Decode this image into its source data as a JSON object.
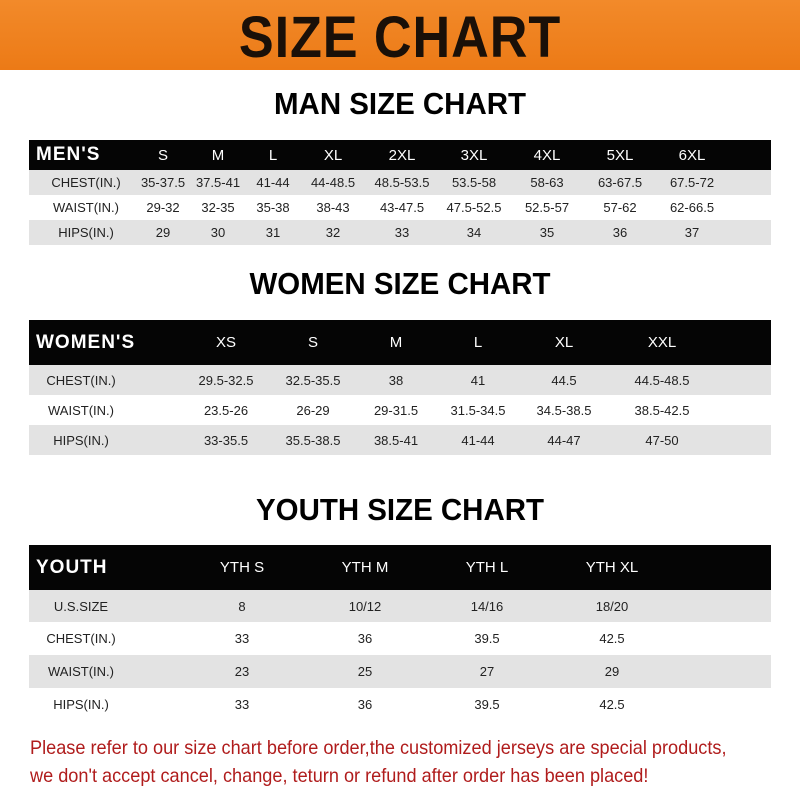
{
  "banner": {
    "title": "SIZE CHART",
    "color": "#ef801e"
  },
  "men": {
    "title": "MAN SIZE CHART",
    "header": [
      "MEN'S",
      "S",
      "M",
      "L",
      "XL",
      "2XL",
      "3XL",
      "4XL",
      "5XL",
      "6XL"
    ],
    "rows": [
      [
        "CHEST(IN.)",
        "35-37.5",
        "37.5-41",
        "41-44",
        "44-48.5",
        "48.5-53.5",
        "53.5-58",
        "58-63",
        "63-67.5",
        "67.5-72"
      ],
      [
        "WAIST(IN.)",
        "29-32",
        "32-35",
        "35-38",
        "38-43",
        "43-47.5",
        "47.5-52.5",
        "52.5-57",
        "57-62",
        "62-66.5"
      ],
      [
        "HIPS(IN.)",
        "29",
        "30",
        "31",
        "32",
        "33",
        "34",
        "35",
        "36",
        "37"
      ]
    ]
  },
  "women": {
    "title": "WOMEN SIZE CHART",
    "header": [
      "WOMEN'S",
      "XS",
      "S",
      "M",
      "L",
      "XL",
      "XXL"
    ],
    "rows": [
      [
        "CHEST(IN.)",
        "29.5-32.5",
        "32.5-35.5",
        "38",
        "41",
        "44.5",
        "44.5-48.5"
      ],
      [
        "WAIST(IN.)",
        "23.5-26",
        "26-29",
        "29-31.5",
        "31.5-34.5",
        "34.5-38.5",
        "38.5-42.5"
      ],
      [
        "HIPS(IN.)",
        "33-35.5",
        "35.5-38.5",
        "38.5-41",
        "41-44",
        "44-47",
        "47-50"
      ]
    ]
  },
  "youth": {
    "title": "YOUTH SIZE CHART",
    "header": [
      "YOUTH",
      "YTH S",
      "YTH M",
      "YTH L",
      "YTH XL"
    ],
    "rows": [
      [
        "U.S.SIZE",
        "8",
        "10/12",
        "14/16",
        "18/20"
      ],
      [
        "CHEST(IN.)",
        "33",
        "36",
        "39.5",
        "42.5"
      ],
      [
        "WAIST(IN.)",
        "23",
        "25",
        "27",
        "29"
      ],
      [
        "HIPS(IN.)",
        "33",
        "36",
        "39.5",
        "42.5"
      ]
    ]
  },
  "note": {
    "line1": "Please refer to our size chart before order,the customized jerseys are special products,",
    "line2": "we don't accept cancel, change, teturn or refund after order has been placed!",
    "color": "#b01c1c"
  }
}
